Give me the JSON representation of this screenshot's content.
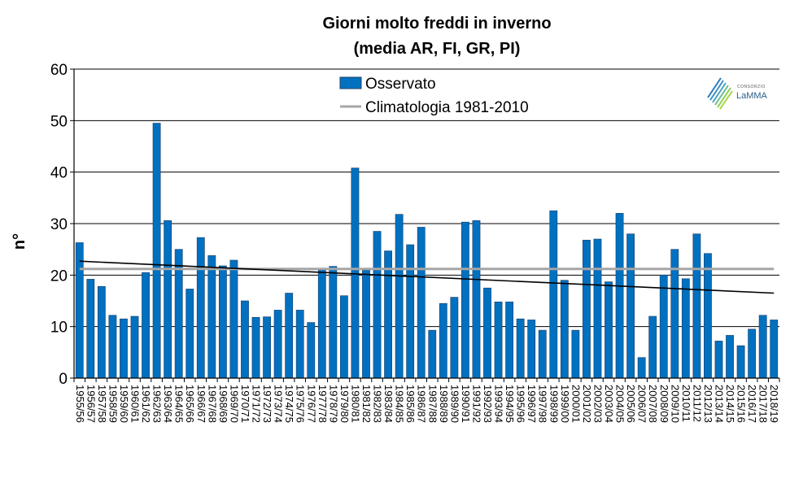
{
  "chart_data": {
    "type": "bar",
    "title_line1": "Giorni molto freddi in inverno",
    "title_line2": "(media AR, FI, GR, PI)",
    "ylabel": "n°",
    "xlabel": "",
    "ylim": [
      0,
      60
    ],
    "yticks": [
      0,
      10,
      20,
      30,
      40,
      50,
      60
    ],
    "grid": true,
    "legend_position": "top-center",
    "categories": [
      "1955/56",
      "1956/57",
      "1957/58",
      "1958/59",
      "1959/60",
      "1960/61",
      "1961/62",
      "1962/63",
      "1963/64",
      "1964/65",
      "1965/66",
      "1966/67",
      "1967/68",
      "1968/69",
      "1969/70",
      "1970/71",
      "1971/72",
      "1972/73",
      "1973/74",
      "1974/75",
      "1975/76",
      "1976/77",
      "1977/78",
      "1978/79",
      "1979/80",
      "1980/81",
      "1981/82",
      "1982/83",
      "1983/84",
      "1984/85",
      "1985/86",
      "1986/87",
      "1987/88",
      "1988/89",
      "1989/90",
      "1990/91",
      "1991/92",
      "1992/93",
      "1993/94",
      "1994/95",
      "1995/96",
      "1996/97",
      "1997/98",
      "1998/99",
      "1999/00",
      "2000/01",
      "2001/02",
      "2002/03",
      "2003/04",
      "2004/05",
      "2005/06",
      "2006/07",
      "2007/08",
      "2008/09",
      "2009/10",
      "2010/11",
      "2011/12",
      "2012/13",
      "2013/14",
      "2014/15",
      "2015/16",
      "2016/17",
      "2017/18",
      "2018/19"
    ],
    "series": [
      {
        "name": "Osservato",
        "color": "#0070C0",
        "values": [
          26.3,
          19.2,
          17.8,
          12.2,
          11.5,
          12,
          20.5,
          49.5,
          30.6,
          25,
          17.3,
          27.3,
          23.8,
          21.8,
          22.9,
          15,
          11.8,
          11.9,
          13.2,
          16.5,
          13.2,
          10.8,
          21,
          21.7,
          16,
          40.8,
          21,
          28.5,
          24.7,
          31.8,
          25.9,
          29.3,
          9.3,
          14.5,
          15.7,
          30.3,
          30.6,
          17.5,
          14.8,
          14.8,
          11.5,
          11.3,
          9.3,
          32.5,
          19,
          9.3,
          26.8,
          27,
          18.7,
          32,
          28,
          4,
          12,
          20,
          25,
          19.3,
          28,
          24.2,
          7.2,
          8.3,
          6.3,
          9.5,
          12.2,
          11.3
        ]
      },
      {
        "name": "Climatologia 1981-2010",
        "type": "line",
        "color": "#a6a6a6",
        "value": 21.2
      },
      {
        "type": "trend",
        "color": "#000000",
        "start": 22.7,
        "end": 16.5
      }
    ]
  },
  "logo": {
    "small_text": "CONSORZIO",
    "big_text": "LaMMA"
  }
}
